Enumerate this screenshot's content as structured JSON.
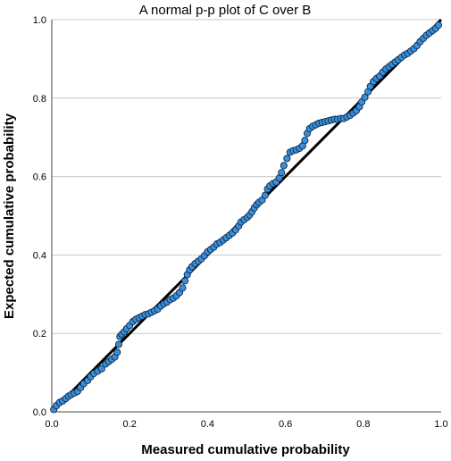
{
  "chart_data": {
    "type": "scatter",
    "title": "A normal p-p plot of C over B",
    "xlabel": "Measured cumulative probability",
    "ylabel": "Expected cumulative probability",
    "xlim": [
      0,
      1
    ],
    "ylim": [
      0,
      1
    ],
    "xticks": [
      "0.0",
      "0.2",
      "0.4",
      "0.6",
      "0.8",
      "1.0"
    ],
    "yticks": [
      "0.0",
      "0.2",
      "0.4",
      "0.6",
      "0.8",
      "1.0"
    ],
    "grid": "horizontal",
    "point_color": "#3b8fd9",
    "point_edge_color": "#0b2a4a",
    "reference_line": {
      "from": [
        0,
        0
      ],
      "to": [
        1,
        1
      ],
      "color": "#000000"
    },
    "series": [
      {
        "values": [
          [
            0.005,
            0.006
          ],
          [
            0.012,
            0.016
          ],
          [
            0.02,
            0.024
          ],
          [
            0.028,
            0.028
          ],
          [
            0.036,
            0.034
          ],
          [
            0.043,
            0.04
          ],
          [
            0.05,
            0.044
          ],
          [
            0.058,
            0.048
          ],
          [
            0.066,
            0.052
          ],
          [
            0.074,
            0.062
          ],
          [
            0.082,
            0.072
          ],
          [
            0.092,
            0.08
          ],
          [
            0.1,
            0.09
          ],
          [
            0.108,
            0.098
          ],
          [
            0.118,
            0.104
          ],
          [
            0.128,
            0.11
          ],
          [
            0.138,
            0.122
          ],
          [
            0.146,
            0.128
          ],
          [
            0.154,
            0.134
          ],
          [
            0.162,
            0.14
          ],
          [
            0.168,
            0.152
          ],
          [
            0.172,
            0.172
          ],
          [
            0.175,
            0.192
          ],
          [
            0.18,
            0.198
          ],
          [
            0.186,
            0.204
          ],
          [
            0.192,
            0.212
          ],
          [
            0.2,
            0.22
          ],
          [
            0.208,
            0.23
          ],
          [
            0.216,
            0.236
          ],
          [
            0.224,
            0.24
          ],
          [
            0.232,
            0.244
          ],
          [
            0.24,
            0.248
          ],
          [
            0.248,
            0.25
          ],
          [
            0.256,
            0.254
          ],
          [
            0.264,
            0.258
          ],
          [
            0.272,
            0.262
          ],
          [
            0.28,
            0.27
          ],
          [
            0.288,
            0.276
          ],
          [
            0.296,
            0.28
          ],
          [
            0.304,
            0.286
          ],
          [
            0.312,
            0.29
          ],
          [
            0.32,
            0.296
          ],
          [
            0.328,
            0.304
          ],
          [
            0.336,
            0.316
          ],
          [
            0.342,
            0.334
          ],
          [
            0.348,
            0.35
          ],
          [
            0.354,
            0.362
          ],
          [
            0.36,
            0.37
          ],
          [
            0.368,
            0.378
          ],
          [
            0.376,
            0.384
          ],
          [
            0.384,
            0.39
          ],
          [
            0.392,
            0.398
          ],
          [
            0.4,
            0.408
          ],
          [
            0.408,
            0.414
          ],
          [
            0.416,
            0.42
          ],
          [
            0.424,
            0.428
          ],
          [
            0.432,
            0.432
          ],
          [
            0.44,
            0.438
          ],
          [
            0.448,
            0.444
          ],
          [
            0.456,
            0.45
          ],
          [
            0.464,
            0.456
          ],
          [
            0.472,
            0.464
          ],
          [
            0.48,
            0.474
          ],
          [
            0.486,
            0.484
          ],
          [
            0.494,
            0.49
          ],
          [
            0.502,
            0.496
          ],
          [
            0.508,
            0.502
          ],
          [
            0.514,
            0.51
          ],
          [
            0.52,
            0.52
          ],
          [
            0.526,
            0.528
          ],
          [
            0.532,
            0.534
          ],
          [
            0.54,
            0.54
          ],
          [
            0.548,
            0.552
          ],
          [
            0.554,
            0.568
          ],
          [
            0.56,
            0.576
          ],
          [
            0.568,
            0.582
          ],
          [
            0.576,
            0.586
          ],
          [
            0.584,
            0.596
          ],
          [
            0.59,
            0.61
          ],
          [
            0.596,
            0.628
          ],
          [
            0.604,
            0.646
          ],
          [
            0.612,
            0.662
          ],
          [
            0.62,
            0.666
          ],
          [
            0.628,
            0.668
          ],
          [
            0.636,
            0.672
          ],
          [
            0.644,
            0.678
          ],
          [
            0.65,
            0.692
          ],
          [
            0.656,
            0.71
          ],
          [
            0.662,
            0.722
          ],
          [
            0.67,
            0.728
          ],
          [
            0.678,
            0.732
          ],
          [
            0.686,
            0.736
          ],
          [
            0.694,
            0.738
          ],
          [
            0.702,
            0.74
          ],
          [
            0.71,
            0.742
          ],
          [
            0.718,
            0.744
          ],
          [
            0.726,
            0.746
          ],
          [
            0.734,
            0.746
          ],
          [
            0.742,
            0.748
          ],
          [
            0.75,
            0.748
          ],
          [
            0.758,
            0.752
          ],
          [
            0.766,
            0.756
          ],
          [
            0.774,
            0.762
          ],
          [
            0.782,
            0.768
          ],
          [
            0.79,
            0.778
          ],
          [
            0.796,
            0.79
          ],
          [
            0.804,
            0.802
          ],
          [
            0.812,
            0.816
          ],
          [
            0.818,
            0.83
          ],
          [
            0.826,
            0.842
          ],
          [
            0.834,
            0.85
          ],
          [
            0.842,
            0.856
          ],
          [
            0.85,
            0.866
          ],
          [
            0.858,
            0.874
          ],
          [
            0.866,
            0.88
          ],
          [
            0.874,
            0.886
          ],
          [
            0.882,
            0.892
          ],
          [
            0.89,
            0.898
          ],
          [
            0.898,
            0.904
          ],
          [
            0.906,
            0.91
          ],
          [
            0.914,
            0.914
          ],
          [
            0.922,
            0.92
          ],
          [
            0.93,
            0.926
          ],
          [
            0.938,
            0.934
          ],
          [
            0.946,
            0.944
          ],
          [
            0.954,
            0.952
          ],
          [
            0.962,
            0.96
          ],
          [
            0.97,
            0.966
          ],
          [
            0.978,
            0.972
          ],
          [
            0.986,
            0.978
          ],
          [
            0.993,
            0.986
          ]
        ]
      }
    ]
  }
}
